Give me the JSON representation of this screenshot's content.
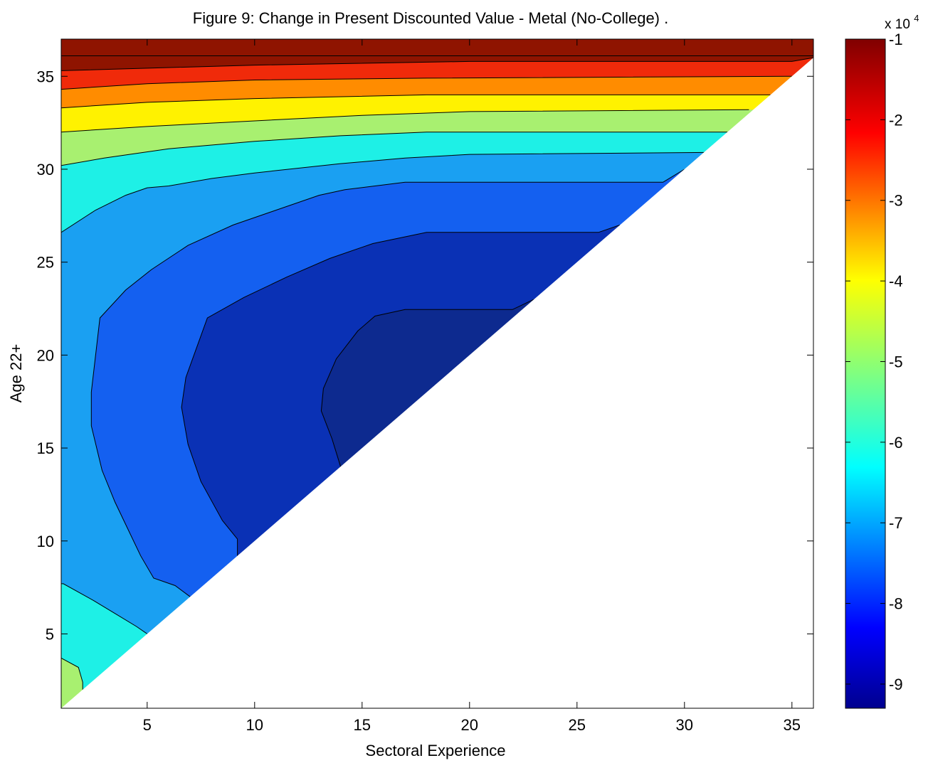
{
  "chart_data": {
    "type": "contour",
    "title": "Figure 9: Change in Present Discounted Value - Metal (No-College) .",
    "xlabel": "Sectoral Experience",
    "ylabel": "Age 22+",
    "xlim": [
      1,
      36
    ],
    "ylim": [
      1,
      37
    ],
    "xticks": [
      "5",
      "10",
      "15",
      "20",
      "25",
      "30",
      "35"
    ],
    "yticks": [
      "5",
      "10",
      "15",
      "20",
      "25",
      "30",
      "35"
    ],
    "colorbar": {
      "exponent_label": "x 10",
      "exponent_power": "4",
      "range": [
        -9.3,
        -1
      ],
      "ticks": [
        "-1",
        "-2",
        "-3",
        "-4",
        "-5",
        "-6",
        "-7",
        "-8",
        "-9"
      ]
    },
    "domain_note_values": {
      "valid_region": "x <= y"
    },
    "fills": [
      {
        "level": 0,
        "color": "#0d2a8f"
      },
      {
        "level": 1,
        "color": "#0a31b5"
      },
      {
        "level": 2,
        "color": "#1460f0"
      },
      {
        "level": 3,
        "color": "#1aa0f2"
      },
      {
        "level": 4,
        "color": "#1ef0e6"
      },
      {
        "level": 5,
        "color": "#a8f070"
      },
      {
        "level": 6,
        "color": "#fff200"
      },
      {
        "level": 7,
        "color": "#ff8c00"
      },
      {
        "level": 8,
        "color": "#f02a0a"
      },
      {
        "level": 9,
        "color": "#8f1400"
      }
    ],
    "contours": [
      {
        "level": 0,
        "points": [
          [
            14,
            14
          ],
          [
            13.6,
            15.5
          ],
          [
            13.1,
            17
          ],
          [
            13.2,
            18.2
          ],
          [
            13.8,
            19.8
          ],
          [
            14.8,
            21.3
          ],
          [
            15.6,
            22.1
          ],
          [
            17,
            22.45
          ],
          [
            22,
            22.45
          ],
          [
            23,
            23
          ]
        ]
      },
      {
        "level": 1,
        "points": [
          [
            9.2,
            9.2
          ],
          [
            9.2,
            10.1
          ],
          [
            8.5,
            11.1
          ],
          [
            7.5,
            13.2
          ],
          [
            6.9,
            15.2
          ],
          [
            6.6,
            17.2
          ],
          [
            6.8,
            18.8
          ],
          [
            7.8,
            22.0
          ],
          [
            9.5,
            23.1
          ],
          [
            11.5,
            24.2
          ],
          [
            13.5,
            25.2
          ],
          [
            15.5,
            26.0
          ],
          [
            18,
            26.6
          ],
          [
            26,
            26.6
          ],
          [
            27,
            27
          ]
        ]
      },
      {
        "level": 2,
        "points": [
          [
            7,
            7
          ],
          [
            6.3,
            7.6
          ],
          [
            5.3,
            8.0
          ],
          [
            4.7,
            9.2
          ],
          [
            3.5,
            12.1
          ],
          [
            2.9,
            13.8
          ],
          [
            2.4,
            16.2
          ],
          [
            2.4,
            18.0
          ],
          [
            2.8,
            22.0
          ],
          [
            4.0,
            23.5
          ],
          [
            5.2,
            24.6
          ],
          [
            6.9,
            25.9
          ],
          [
            9,
            27.0
          ],
          [
            11,
            27.8
          ],
          [
            13,
            28.6
          ],
          [
            14.2,
            28.9
          ],
          [
            17,
            29.3
          ],
          [
            29,
            29.3
          ],
          [
            30,
            30
          ]
        ]
      },
      {
        "level": 3,
        "points": [
          [
            5,
            5
          ],
          [
            4.5,
            5.4
          ],
          [
            3.5,
            6.1
          ],
          [
            2.5,
            6.8
          ],
          [
            1.1,
            7.7
          ],
          [
            1,
            7.7
          ]
        ]
      },
      {
        "level": 3,
        "points": [
          [
            1,
            26.6
          ],
          [
            2.6,
            27.8
          ],
          [
            4,
            28.6
          ],
          [
            5,
            29.0
          ],
          [
            6,
            29.1
          ],
          [
            8,
            29.5
          ],
          [
            10,
            29.8
          ],
          [
            14,
            30.3
          ],
          [
            17,
            30.6
          ],
          [
            20,
            30.8
          ],
          [
            31,
            30.9
          ]
        ]
      },
      {
        "level": 4,
        "points": [
          [
            2,
            2
          ],
          [
            2,
            2.4
          ],
          [
            1.8,
            3.2
          ],
          [
            1,
            3.7
          ]
        ]
      },
      {
        "level": 4,
        "points": [
          [
            1,
            30.2
          ],
          [
            3,
            30.6
          ],
          [
            6,
            31.1
          ],
          [
            10,
            31.5
          ],
          [
            14,
            31.8
          ],
          [
            18,
            32.0
          ],
          [
            25,
            32.0
          ],
          [
            32,
            32.0
          ]
        ]
      },
      {
        "level": 5,
        "points": [
          [
            1,
            32.0
          ],
          [
            5,
            32.3
          ],
          [
            10,
            32.6
          ],
          [
            15,
            32.9
          ],
          [
            20,
            33.1
          ],
          [
            33,
            33.2
          ]
        ]
      },
      {
        "level": 6,
        "points": [
          [
            1,
            33.3
          ],
          [
            5,
            33.6
          ],
          [
            10,
            33.8
          ],
          [
            18,
            34.0
          ],
          [
            34,
            34.0
          ]
        ]
      },
      {
        "level": 7,
        "points": [
          [
            1,
            34.3
          ],
          [
            5,
            34.6
          ],
          [
            10,
            34.8
          ],
          [
            18,
            34.9
          ],
          [
            35,
            35.0
          ]
        ]
      },
      {
        "level": 8,
        "points": [
          [
            1,
            35.3
          ],
          [
            10,
            35.6
          ],
          [
            20,
            35.8
          ],
          [
            35,
            35.8
          ],
          [
            36,
            36
          ]
        ]
      },
      {
        "level": 9,
        "points": [
          [
            1,
            36.1
          ],
          [
            15,
            36.1
          ],
          [
            36,
            36.1
          ]
        ]
      }
    ]
  }
}
